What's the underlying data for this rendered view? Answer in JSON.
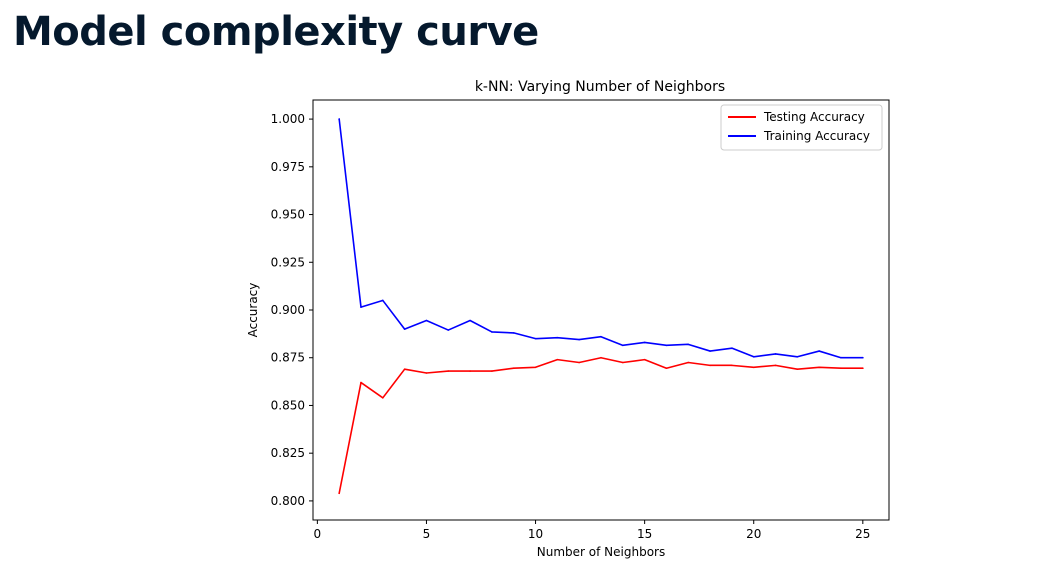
{
  "slide": {
    "title": "Model complexity curve"
  },
  "chart_data": {
    "type": "line",
    "title": "k-NN: Varying Number of Neighbors",
    "xlabel": "Number of Neighbors",
    "ylabel": "Accuracy",
    "xlim": [
      -0.2,
      26.2
    ],
    "ylim": [
      0.79,
      1.01
    ],
    "xticks": [
      0,
      5,
      10,
      15,
      20,
      25
    ],
    "yticks": [
      0.8,
      0.825,
      0.85,
      0.875,
      0.9,
      0.925,
      0.95,
      0.975,
      1.0
    ],
    "ytick_labels": [
      "0.800",
      "0.825",
      "0.850",
      "0.875",
      "0.900",
      "0.925",
      "0.950",
      "0.975",
      "1.000"
    ],
    "grid": false,
    "legend_position": "top-right",
    "x": [
      1,
      2,
      3,
      4,
      5,
      6,
      7,
      8,
      9,
      10,
      11,
      12,
      13,
      14,
      15,
      16,
      17,
      18,
      19,
      20,
      21,
      22,
      23,
      24,
      25
    ],
    "series": [
      {
        "name": "Testing Accuracy",
        "color": "#ff0000",
        "values": [
          0.804,
          0.862,
          0.854,
          0.869,
          0.867,
          0.868,
          0.868,
          0.868,
          0.8695,
          0.87,
          0.874,
          0.8725,
          0.875,
          0.8725,
          0.874,
          0.8695,
          0.8725,
          0.871,
          0.871,
          0.87,
          0.871,
          0.869,
          0.87,
          0.8695,
          0.8695
        ]
      },
      {
        "name": "Training Accuracy",
        "color": "#0000ff",
        "values": [
          1.0,
          0.9015,
          0.905,
          0.89,
          0.8945,
          0.8895,
          0.8945,
          0.8885,
          0.888,
          0.885,
          0.8855,
          0.8845,
          0.886,
          0.8815,
          0.883,
          0.8815,
          0.882,
          0.8785,
          0.88,
          0.8755,
          0.877,
          0.8755,
          0.8785,
          0.875,
          0.875
        ]
      }
    ]
  }
}
